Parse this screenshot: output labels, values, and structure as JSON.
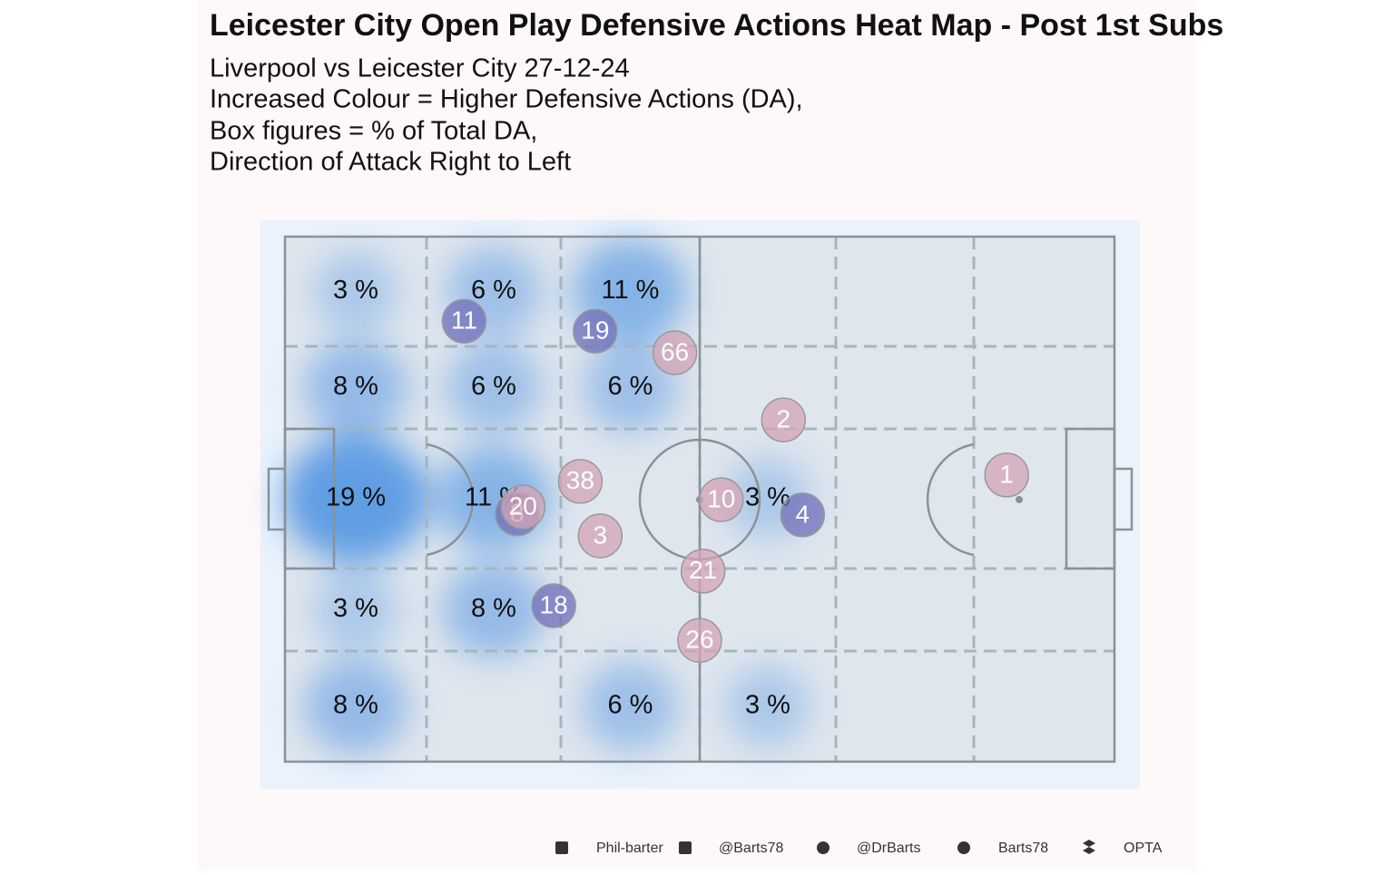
{
  "chart_data": {
    "type": "pitch-heatmap",
    "title": "Leicester City  Open Play Defensive Actions Heat Map - Post 1st Subs",
    "subtitle": [
      "Liverpool vs Leicester City 27-12-24",
      "Increased Colour = Higher Defensive Actions (DA),",
      "Box figures = % of Total DA,",
      "Direction of Attack Right to Left"
    ],
    "values": [
      [
        3,
        6,
        11,
        null,
        null,
        null
      ],
      [
        8,
        6,
        6,
        null,
        null,
        null
      ],
      [
        19,
        11,
        null,
        3,
        null,
        null
      ],
      [
        3,
        8,
        null,
        null,
        null,
        null
      ],
      [
        8,
        null,
        6,
        3,
        null,
        null
      ]
    ],
    "value_labels": [
      [
        "3 %",
        "6 %",
        "11 %",
        null,
        null,
        null
      ],
      [
        "8 %",
        "6 %",
        "6 %",
        null,
        null,
        null
      ],
      [
        "19 %",
        "11 %",
        null,
        "3 %",
        null,
        null
      ],
      [
        "3 %",
        "8 %",
        null,
        null,
        null,
        null
      ],
      [
        "8 %",
        null,
        "6 %",
        "3 %",
        null,
        null
      ]
    ],
    "heat_color": "#4a90e2",
    "xlim": [
      0,
      100
    ],
    "ylim": [
      0,
      100
    ],
    "series": [
      {
        "color": "#6f6fb8",
        "labels": [
          "11",
          "19",
          "8",
          "18",
          "4"
        ],
        "x": [
          21.6,
          37.4,
          28.0,
          32.4,
          62.4
        ],
        "y": [
          16.1,
          18.0,
          52.8,
          70.3,
          53.0
        ]
      },
      {
        "color": "#d4a3b6",
        "labels": [
          "66",
          "2",
          "38",
          "20",
          "3",
          "10",
          "21",
          "26",
          "1"
        ],
        "x": [
          47.0,
          60.1,
          35.6,
          28.7,
          38.0,
          52.6,
          50.4,
          50.0,
          87.0
        ],
        "y": [
          22.1,
          34.9,
          46.6,
          51.5,
          57.0,
          50.1,
          63.7,
          76.9,
          45.4
        ]
      }
    ],
    "footer": [
      "Phil-barter",
      "@Barts78",
      "@DrBarts",
      "Barts78",
      "OPTA"
    ]
  }
}
